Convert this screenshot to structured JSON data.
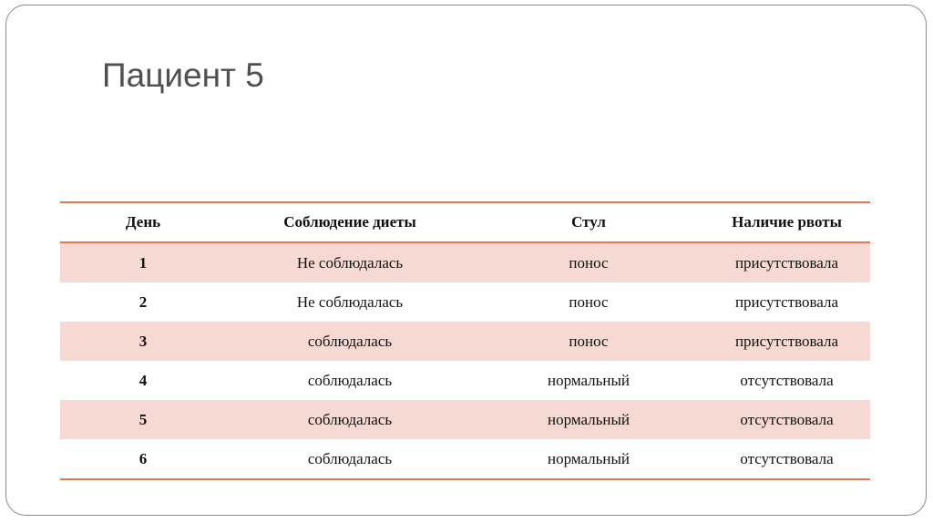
{
  "title": "Пациент 5",
  "table": {
    "headers": [
      "День",
      "Соблюдение диеты",
      "Стул",
      "Наличие рвоты"
    ],
    "rows": [
      [
        "1",
        "Не соблюдалась",
        "понос",
        "присутствовала"
      ],
      [
        "2",
        "Не соблюдалась",
        "понос",
        "присутствовала"
      ],
      [
        "3",
        "соблюдалась",
        "понос",
        "присутствовала"
      ],
      [
        "4",
        "соблюдалась",
        "нормальный",
        "отсутствовала"
      ],
      [
        "5",
        "соблюдалась",
        "нормальный",
        "отсутствовала"
      ],
      [
        "6",
        "соблюдалась",
        "нормальный",
        "отсутствовала"
      ]
    ]
  },
  "colors": {
    "accent": "#e07a55",
    "row_shade": "#f5d9d2"
  }
}
